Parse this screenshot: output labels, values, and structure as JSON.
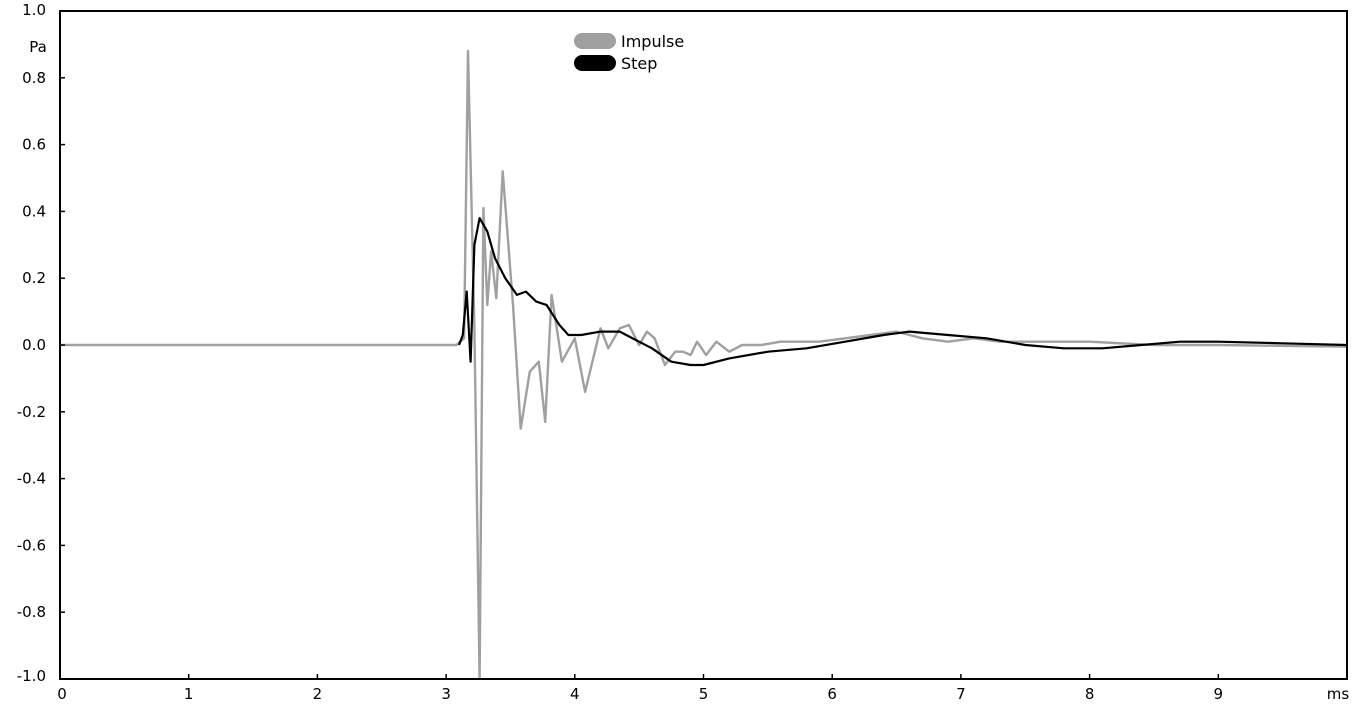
{
  "chart_data": {
    "type": "line",
    "title": "",
    "xlabel": "",
    "ylabel": "",
    "x_unit": "ms",
    "y_unit": "Pa",
    "xlim": [
      0,
      10
    ],
    "ylim": [
      -1.0,
      1.0
    ],
    "x_ticks": [
      0,
      1,
      2,
      3,
      4,
      5,
      6,
      7,
      8,
      9
    ],
    "x_tick_labels": [
      "0",
      "1",
      "2",
      "3",
      "4",
      "5",
      "6",
      "7",
      "8",
      "9"
    ],
    "y_ticks": [
      1.0,
      0.8,
      0.6,
      0.4,
      0.2,
      0.0,
      -0.2,
      -0.4,
      -0.6,
      -0.8,
      -1.0
    ],
    "y_tick_labels": [
      "1.0",
      "0.8",
      "0.6",
      "0.4",
      "0.2",
      "0.0",
      "-0.2",
      "-0.4",
      "-0.6",
      "-0.8",
      "-1.0"
    ],
    "grid": false,
    "legend": {
      "placement": "top-center",
      "entries": [
        {
          "name": "Impulse",
          "color": "#a0a0a0"
        },
        {
          "name": "Step",
          "color": "#000000"
        }
      ]
    },
    "series": [
      {
        "name": "Impulse",
        "color": "#a0a0a0",
        "points": [
          [
            0,
            0.0
          ],
          [
            3.08,
            0.0
          ],
          [
            3.14,
            0.02
          ],
          [
            3.17,
            0.88
          ],
          [
            3.22,
            0.05
          ],
          [
            3.26,
            -1.0
          ],
          [
            3.29,
            0.41
          ],
          [
            3.32,
            0.12
          ],
          [
            3.35,
            0.28
          ],
          [
            3.39,
            0.14
          ],
          [
            3.44,
            0.52
          ],
          [
            3.52,
            0.12
          ],
          [
            3.58,
            -0.25
          ],
          [
            3.65,
            -0.08
          ],
          [
            3.72,
            -0.05
          ],
          [
            3.77,
            -0.23
          ],
          [
            3.82,
            0.15
          ],
          [
            3.9,
            -0.05
          ],
          [
            4.0,
            0.02
          ],
          [
            4.08,
            -0.14
          ],
          [
            4.2,
            0.05
          ],
          [
            4.26,
            -0.01
          ],
          [
            4.35,
            0.05
          ],
          [
            4.42,
            0.06
          ],
          [
            4.5,
            0.0
          ],
          [
            4.56,
            0.04
          ],
          [
            4.62,
            0.02
          ],
          [
            4.7,
            -0.06
          ],
          [
            4.78,
            -0.02
          ],
          [
            4.84,
            -0.02
          ],
          [
            4.9,
            -0.03
          ],
          [
            4.95,
            0.01
          ],
          [
            5.02,
            -0.03
          ],
          [
            5.1,
            0.01
          ],
          [
            5.2,
            -0.02
          ],
          [
            5.3,
            0.0
          ],
          [
            5.45,
            0.0
          ],
          [
            5.6,
            0.01
          ],
          [
            5.75,
            0.01
          ],
          [
            5.9,
            0.01
          ],
          [
            6.1,
            0.02
          ],
          [
            6.3,
            0.03
          ],
          [
            6.5,
            0.04
          ],
          [
            6.7,
            0.02
          ],
          [
            6.9,
            0.01
          ],
          [
            7.1,
            0.02
          ],
          [
            7.3,
            0.01
          ],
          [
            7.6,
            0.01
          ],
          [
            8.0,
            0.01
          ],
          [
            8.5,
            0.0
          ],
          [
            9.0,
            0.0
          ],
          [
            10.0,
            -0.005
          ]
        ]
      },
      {
        "name": "Step",
        "color": "#000000",
        "points": [
          [
            3.1,
            0.0
          ],
          [
            3.13,
            0.03
          ],
          [
            3.16,
            0.16
          ],
          [
            3.19,
            -0.05
          ],
          [
            3.22,
            0.3
          ],
          [
            3.26,
            0.38
          ],
          [
            3.32,
            0.34
          ],
          [
            3.38,
            0.26
          ],
          [
            3.46,
            0.2
          ],
          [
            3.55,
            0.15
          ],
          [
            3.62,
            0.16
          ],
          [
            3.7,
            0.13
          ],
          [
            3.78,
            0.12
          ],
          [
            3.88,
            0.06
          ],
          [
            3.95,
            0.03
          ],
          [
            4.05,
            0.03
          ],
          [
            4.2,
            0.04
          ],
          [
            4.35,
            0.04
          ],
          [
            4.5,
            0.01
          ],
          [
            4.6,
            -0.01
          ],
          [
            4.75,
            -0.05
          ],
          [
            4.9,
            -0.06
          ],
          [
            5.0,
            -0.06
          ],
          [
            5.2,
            -0.04
          ],
          [
            5.5,
            -0.02
          ],
          [
            5.8,
            -0.01
          ],
          [
            6.1,
            0.01
          ],
          [
            6.4,
            0.03
          ],
          [
            6.6,
            0.04
          ],
          [
            6.9,
            0.03
          ],
          [
            7.2,
            0.02
          ],
          [
            7.5,
            0.0
          ],
          [
            7.8,
            -0.01
          ],
          [
            8.1,
            -0.01
          ],
          [
            8.4,
            0.0
          ],
          [
            8.7,
            0.01
          ],
          [
            9.0,
            0.01
          ],
          [
            9.5,
            0.005
          ],
          [
            10.0,
            0.0
          ]
        ]
      }
    ]
  }
}
